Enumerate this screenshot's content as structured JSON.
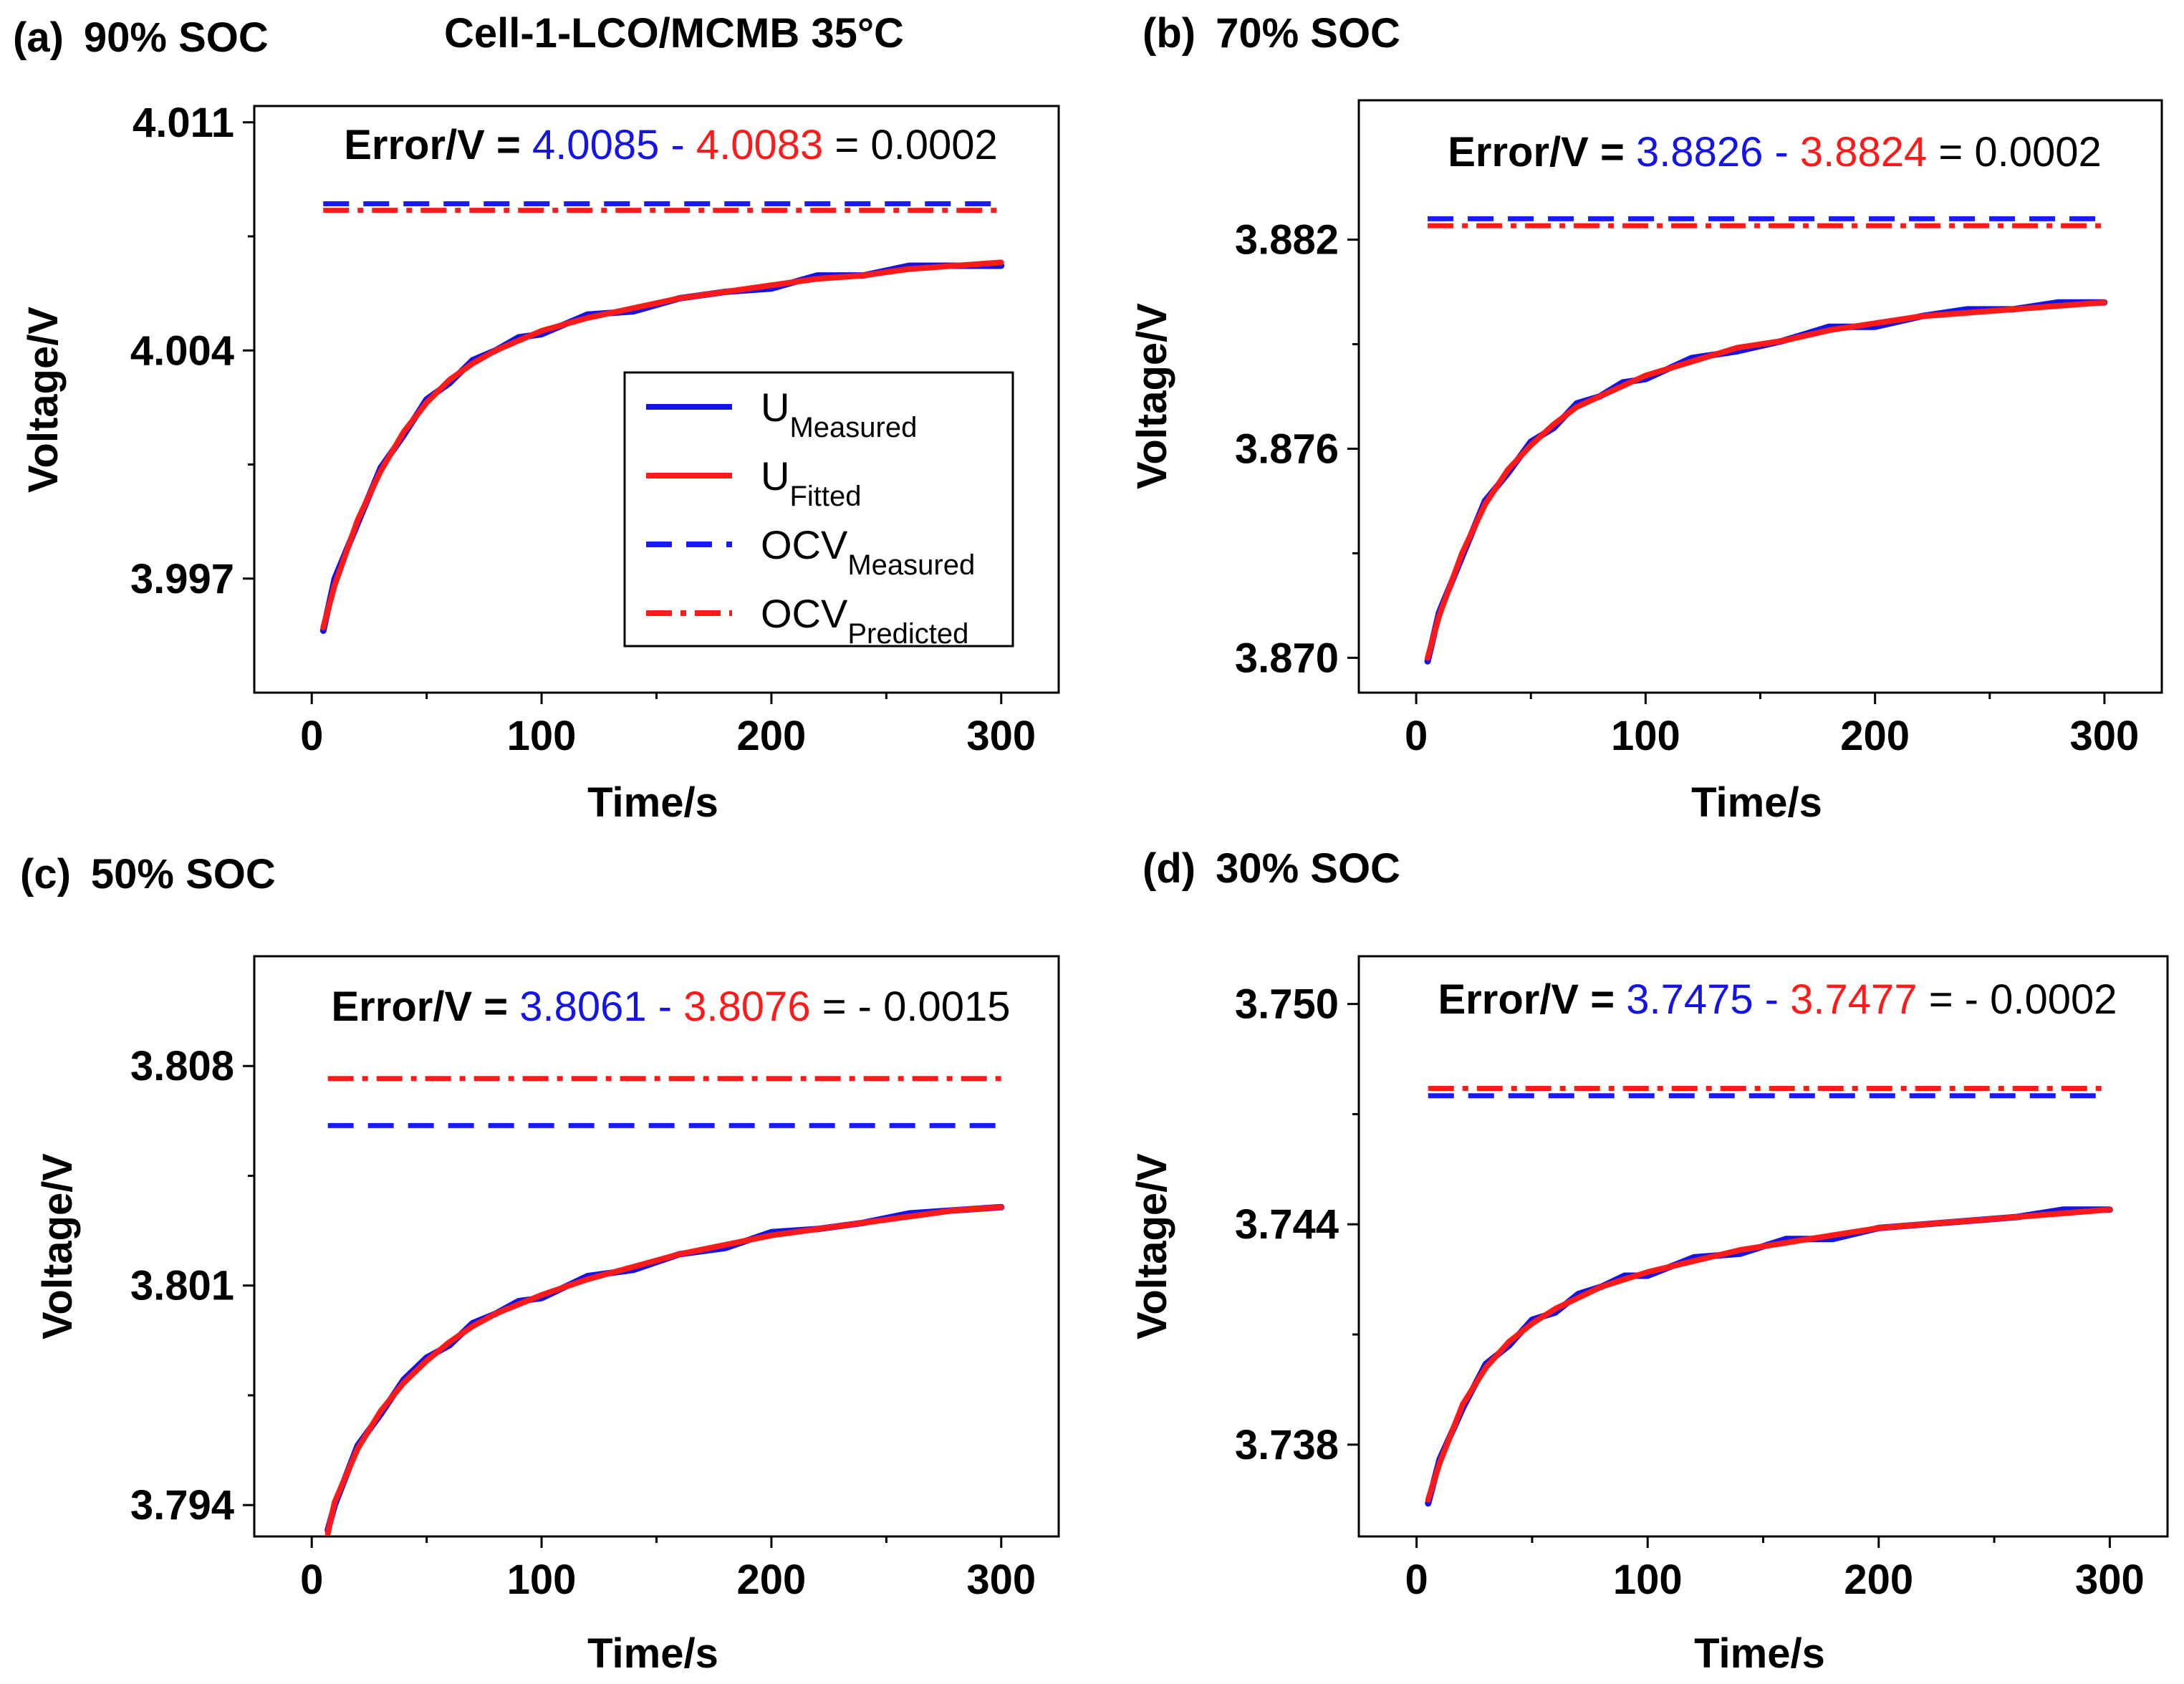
{
  "figure_title": "Cell-1-LCO/MCMB 35°C",
  "colors": {
    "measured": "#1414e6",
    "fitted": "#ff1a1a",
    "ocv_measured": "#1a1aff",
    "ocv_predicted": "#ff1a1a",
    "text": "#000000"
  },
  "legend": [
    {
      "label": "U",
      "sub": "Measured",
      "style": "solid",
      "color": "#1414e6"
    },
    {
      "label": "U",
      "sub": "Fitted",
      "style": "solid",
      "color": "#ff1a1a"
    },
    {
      "label": "OCV",
      "sub": "Measured",
      "style": "dashed",
      "color": "#1a1aff"
    },
    {
      "label": "OCV",
      "sub": "Predicted",
      "style": "dashdot",
      "color": "#ff1a1a"
    }
  ],
  "chart_data": [
    {
      "type": "line",
      "panel_label": "(a)",
      "title": "90% SOC",
      "xlabel": "Time/s",
      "ylabel": "Voltage/V",
      "xlim": [
        -25,
        325
      ],
      "ylim": [
        3.9935,
        4.0115
      ],
      "xticks": [
        "0",
        "100",
        "200",
        "300"
      ],
      "xtick_values": [
        0,
        100,
        200,
        300
      ],
      "yticks": [
        "3.997",
        "4.004",
        "4.011"
      ],
      "ytick_values": [
        3.997,
        4.004,
        4.011
      ],
      "error_label": "Error/V =",
      "error_measured": "4.0085",
      "error_minus": "-",
      "error_predicted": "4.0083",
      "error_result": "= 0.0002",
      "ocv_measured": 4.0085,
      "ocv_predicted": 4.0083,
      "x": [
        5,
        10,
        20,
        30,
        40,
        50,
        60,
        70,
        80,
        90,
        100,
        120,
        140,
        160,
        180,
        200,
        220,
        240,
        260,
        280,
        300
      ],
      "series": [
        {
          "name": "U_Fitted",
          "values": [
            3.9955,
            3.9968,
            3.9988,
            4.0003,
            4.0015,
            4.0024,
            4.0031,
            4.0036,
            4.004,
            4.0043,
            4.0046,
            4.005,
            4.0053,
            4.0056,
            4.0058,
            4.006,
            4.0062,
            4.0063,
            4.0065,
            4.0066,
            4.0067
          ]
        },
        {
          "name": "U_Measured",
          "values": [
            3.9954,
            3.997,
            3.9987,
            4.0004,
            4.0014,
            4.0025,
            4.003,
            4.0037,
            4.004,
            4.0044,
            4.0045,
            4.0051,
            4.0052,
            4.0056,
            4.0058,
            4.0059,
            4.0063,
            4.0063,
            4.0066,
            4.0066,
            4.0066
          ]
        }
      ],
      "legend_shown": true
    },
    {
      "type": "line",
      "panel_label": "(b)",
      "title": "70% SOC",
      "xlabel": "Time/s",
      "ylabel": "Voltage/V",
      "xlim": [
        -25,
        325
      ],
      "ylim": [
        3.869,
        3.886
      ],
      "xticks": [
        "0",
        "100",
        "200",
        "300"
      ],
      "xtick_values": [
        0,
        100,
        200,
        300
      ],
      "yticks": [
        "3.870",
        "3.876",
        "3.882"
      ],
      "ytick_values": [
        3.87,
        3.876,
        3.882
      ],
      "error_label": "Error/V =",
      "error_measured": "3.8826",
      "error_minus": "-",
      "error_predicted": "3.8824",
      "error_result": "= 0.0002",
      "ocv_measured": 3.8826,
      "ocv_predicted": 3.8824,
      "x": [
        5,
        10,
        20,
        30,
        40,
        50,
        60,
        70,
        80,
        90,
        100,
        120,
        140,
        160,
        180,
        200,
        220,
        240,
        260,
        280,
        300
      ],
      "series": [
        {
          "name": "U_Fitted",
          "values": [
            3.87,
            3.8712,
            3.873,
            3.8744,
            3.8754,
            3.8761,
            3.8767,
            3.8772,
            3.8775,
            3.8778,
            3.8781,
            3.8785,
            3.8789,
            3.8791,
            3.8794,
            3.8796,
            3.8798,
            3.8799,
            3.88,
            3.8801,
            3.8802
          ]
        },
        {
          "name": "U_Measured",
          "values": [
            3.8699,
            3.8713,
            3.8729,
            3.8745,
            3.8753,
            3.8762,
            3.8766,
            3.8773,
            3.8775,
            3.8779,
            3.878,
            3.8786,
            3.8788,
            3.8791,
            3.8795,
            3.8795,
            3.8798,
            3.88,
            3.88,
            3.8802,
            3.8802
          ]
        }
      ],
      "legend_shown": false
    },
    {
      "type": "line",
      "panel_label": "(c)",
      "title": "50% SOC",
      "xlabel": "Time/s",
      "ylabel": "Voltage/V",
      "xlim": [
        -25,
        325
      ],
      "ylim": [
        3.793,
        3.8115
      ],
      "xticks": [
        "0",
        "100",
        "200",
        "300"
      ],
      "xtick_values": [
        0,
        100,
        200,
        300
      ],
      "yticks": [
        "3.794",
        "3.801",
        "3.808"
      ],
      "ytick_values": [
        3.794,
        3.801,
        3.808
      ],
      "error_label": "Error/V =",
      "error_measured": "3.8061",
      "error_minus": "-",
      "error_predicted": "3.8076",
      "error_result": "= - 0.0015",
      "ocv_measured": 3.8061,
      "ocv_predicted": 3.8076,
      "x": [
        7,
        10,
        20,
        30,
        40,
        50,
        60,
        70,
        80,
        90,
        100,
        120,
        140,
        160,
        180,
        200,
        220,
        240,
        260,
        280,
        300
      ],
      "series": [
        {
          "name": "U_Fitted",
          "values": [
            3.7931,
            3.7941,
            3.7958,
            3.797,
            3.7979,
            3.7986,
            3.7992,
            3.7997,
            3.8001,
            3.8004,
            3.8007,
            3.8012,
            3.8016,
            3.802,
            3.8023,
            3.8026,
            3.8028,
            3.803,
            3.8032,
            3.8034,
            3.8035
          ]
        },
        {
          "name": "U_Measured",
          "values": [
            3.7932,
            3.794,
            3.7959,
            3.7969,
            3.798,
            3.7987,
            3.7991,
            3.7998,
            3.8001,
            3.8005,
            3.8006,
            3.8013,
            3.8015,
            3.802,
            3.8022,
            3.8027,
            3.8028,
            3.803,
            3.8033,
            3.8034,
            3.8035
          ]
        }
      ],
      "legend_shown": false
    },
    {
      "type": "line",
      "panel_label": "(d)",
      "title": "30% SOC",
      "xlabel": "Time/s",
      "ylabel": "Voltage/V",
      "xlim": [
        -25,
        325
      ],
      "ylim": [
        3.7355,
        3.7513
      ],
      "xticks": [
        "0",
        "100",
        "200",
        "300"
      ],
      "xtick_values": [
        0,
        100,
        200,
        300
      ],
      "yticks": [
        "3.738",
        "3.744",
        "3.750"
      ],
      "ytick_values": [
        3.738,
        3.744,
        3.75
      ],
      "error_label": "Error/V =",
      "error_measured": "3.7475",
      "error_minus": "-",
      "error_predicted": "3.7477",
      "error_result": "= - 0.0002",
      "ocv_measured": 3.7475,
      "ocv_predicted": 3.7477,
      "x": [
        5,
        10,
        20,
        30,
        40,
        50,
        60,
        70,
        80,
        90,
        100,
        120,
        140,
        160,
        180,
        200,
        220,
        240,
        260,
        280,
        300
      ],
      "series": [
        {
          "name": "U_Fitted",
          "values": [
            3.7365,
            3.7375,
            3.7391,
            3.7401,
            3.7408,
            3.7413,
            3.7417,
            3.742,
            3.7423,
            3.7425,
            3.7427,
            3.743,
            3.7433,
            3.7435,
            3.7437,
            3.7439,
            3.744,
            3.7441,
            3.7442,
            3.7443,
            3.7444
          ]
        },
        {
          "name": "U_Measured",
          "values": [
            3.7364,
            3.7376,
            3.739,
            3.7402,
            3.7407,
            3.7414,
            3.7416,
            3.7421,
            3.7423,
            3.7426,
            3.7426,
            3.7431,
            3.7432,
            3.7436,
            3.7436,
            3.7439,
            3.744,
            3.7441,
            3.7442,
            3.7444,
            3.7444
          ]
        }
      ],
      "legend_shown": false
    }
  ]
}
